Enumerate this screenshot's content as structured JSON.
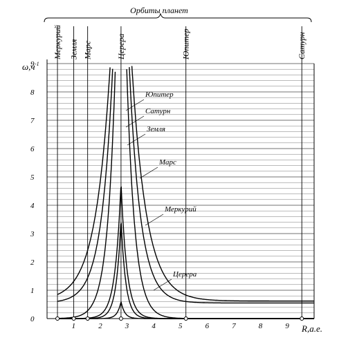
{
  "chart_data": {
    "type": "line",
    "title": "Орбиты планет",
    "xlabel": "R,а.е.",
    "ylabel": "ω,ч",
    "ylabel_exponent": "-1",
    "xlim": [
      0,
      10
    ],
    "ylim": [
      0,
      9
    ],
    "x_ticks": [
      "1",
      "2",
      "3",
      "4",
      "5",
      "6",
      "7",
      "8",
      "9"
    ],
    "y_ticks": [
      "0",
      "1",
      "2",
      "3",
      "4",
      "5",
      "6",
      "7",
      "8",
      "9"
    ],
    "grid": "horizontal",
    "planet_orbits": [
      {
        "name": "Меркурий",
        "r": 0.39
      },
      {
        "name": "Земля",
        "r": 1.0
      },
      {
        "name": "Марс",
        "r": 1.52
      },
      {
        "name": "Церера",
        "r": 2.77
      },
      {
        "name": "Юпитер",
        "r": 5.2
      },
      {
        "name": "Сатурн",
        "r": 9.54
      }
    ],
    "series": [
      {
        "name": "Юпитер",
        "peak": 18.0,
        "base": 0.62,
        "w": 0.55
      },
      {
        "name": "Сатурн",
        "peak": 18.0,
        "base": 0.55,
        "w": 0.42
      },
      {
        "name": "Земля",
        "peak": 18.0,
        "base": 0.0,
        "w": 0.3
      },
      {
        "name": "Марс",
        "peak": 4.8,
        "base": 0.0,
        "w": 0.22
      },
      {
        "name": "Меркурий",
        "peak": 3.5,
        "base": 0.0,
        "w": 0.18
      },
      {
        "name": "Церера",
        "peak": 0.6,
        "base": 0.0,
        "w": 0.14
      }
    ],
    "series_labels": [
      {
        "name": "Юпитер",
        "label": "Юпитер"
      },
      {
        "name": "Сатурн",
        "label": "Сатурн"
      },
      {
        "name": "Земля",
        "label": "Земля"
      },
      {
        "name": "Марс",
        "label": "Марс"
      },
      {
        "name": "Меркурий",
        "label": "Меркурий"
      },
      {
        "name": "Церера",
        "label": "Церера"
      }
    ]
  }
}
